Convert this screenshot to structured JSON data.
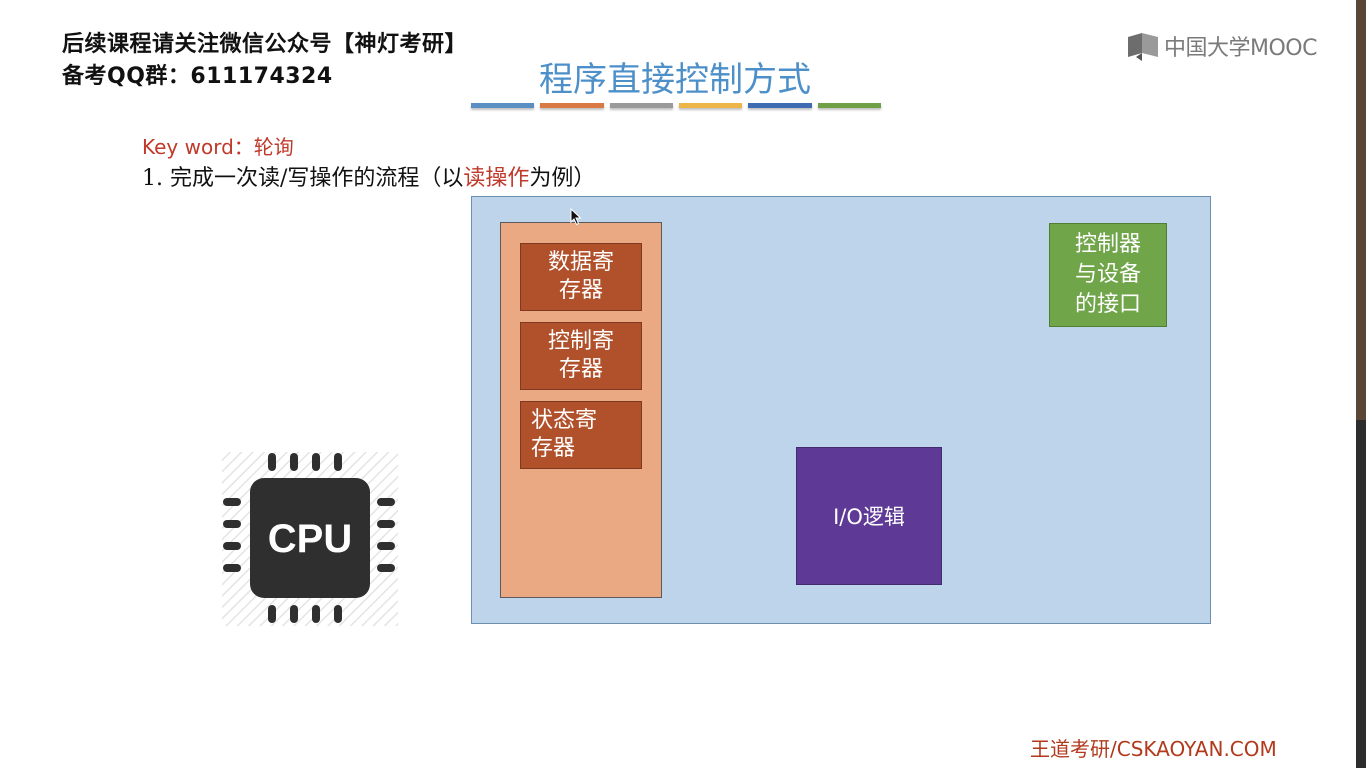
{
  "watermark": {
    "line1": "后续课程请关注微信公众号【神灯考研】",
    "line2": "备考QQ群：611174324"
  },
  "slide": {
    "title": "程序直接控制方式",
    "title_bar_colors": [
      "#5b8fc4",
      "#d97a45",
      "#9a9a9a",
      "#edb447",
      "#3f6bb3",
      "#6fa046"
    ],
    "keyword": "Key word：轮询",
    "step_prefix": "1.  完成一次读/写操作的流程（以",
    "step_highlight": "读操作",
    "step_suffix": "为例）"
  },
  "logo": {
    "text": "中国大学MOOC",
    "icon": "mooc-logo-icon"
  },
  "diagram": {
    "registers": [
      {
        "label": "数据寄存器",
        "line1": "数据寄",
        "line2": "存器"
      },
      {
        "label": "控制寄存器",
        "line1": "控制寄",
        "line2": "存器"
      },
      {
        "label": "状态寄存器",
        "line1": "状态寄",
        "line2": "存器"
      }
    ],
    "interface": {
      "line1": "控制器",
      "line2": "与设备",
      "line3": "的接口"
    },
    "io_logic": "I/O逻辑",
    "cpu_label": "CPU"
  },
  "footer": "王道考研/CSKAOYAN.COM",
  "colors": {
    "device_bg": "#bed4ea",
    "register_column": "#eaa983",
    "register": "#b1512b",
    "interface": "#70a54a",
    "io_logic": "#5e3a96",
    "title": "#4d90c9"
  }
}
